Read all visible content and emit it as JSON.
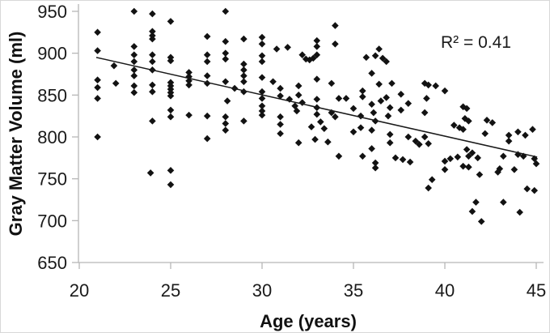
{
  "chart_data": {
    "type": "scatter",
    "title": "",
    "xlabel": "Age (years)",
    "ylabel": "Gray Matter Volume (ml)",
    "annotation": "R² = 0.41",
    "r_squared": 0.41,
    "xlim": [
      20,
      45
    ],
    "ylim": [
      650,
      950
    ],
    "x_ticks": [
      20,
      25,
      30,
      35,
      40,
      45
    ],
    "y_ticks": [
      650,
      700,
      750,
      800,
      850,
      900,
      950
    ],
    "grid": false,
    "legend_position": "none",
    "marker": "diamond",
    "marker_color": "#121212",
    "axis_color": "#b7b7b7",
    "label_color": "#1a1a1a",
    "trendline": {
      "x1": 20.93,
      "y1": 895,
      "x2": 45.05,
      "y2": 776,
      "color": "#1a1a1a"
    },
    "points": [
      [
        21,
        925
      ],
      [
        21,
        903
      ],
      [
        21,
        868
      ],
      [
        21,
        859
      ],
      [
        21,
        846
      ],
      [
        21,
        800
      ],
      [
        21.9,
        885
      ],
      [
        22,
        864
      ],
      [
        23,
        950
      ],
      [
        23,
        908
      ],
      [
        23,
        898
      ],
      [
        23,
        890
      ],
      [
        23,
        880
      ],
      [
        23,
        873
      ],
      [
        23,
        861
      ],
      [
        23,
        853
      ],
      [
        23.9,
        757
      ],
      [
        24,
        947
      ],
      [
        24,
        926
      ],
      [
        24,
        921
      ],
      [
        24,
        917
      ],
      [
        24,
        898
      ],
      [
        24,
        890
      ],
      [
        24,
        880
      ],
      [
        24,
        862
      ],
      [
        24,
        854
      ],
      [
        24,
        819
      ],
      [
        25,
        938
      ],
      [
        25,
        895
      ],
      [
        25,
        891
      ],
      [
        25,
        865
      ],
      [
        25,
        861
      ],
      [
        25,
        857
      ],
      [
        25,
        853
      ],
      [
        25,
        849
      ],
      [
        25,
        832
      ],
      [
        25,
        824
      ],
      [
        25,
        760
      ],
      [
        25,
        743
      ],
      [
        26,
        877
      ],
      [
        26,
        872
      ],
      [
        26,
        867
      ],
      [
        26,
        862
      ],
      [
        26,
        826
      ],
      [
        27,
        920
      ],
      [
        27,
        898
      ],
      [
        27,
        890
      ],
      [
        27,
        873
      ],
      [
        27,
        864
      ],
      [
        27,
        825
      ],
      [
        27,
        798
      ],
      [
        28,
        950
      ],
      [
        28,
        914
      ],
      [
        28,
        900
      ],
      [
        28,
        893
      ],
      [
        28,
        866
      ],
      [
        28.5,
        858
      ],
      [
        28.1,
        843
      ],
      [
        28,
        824
      ],
      [
        28,
        816
      ],
      [
        28,
        808
      ],
      [
        29,
        917
      ],
      [
        29,
        887
      ],
      [
        29,
        880
      ],
      [
        29,
        873
      ],
      [
        29,
        866
      ],
      [
        29,
        854
      ],
      [
        29,
        819
      ],
      [
        30,
        919
      ],
      [
        30,
        911
      ],
      [
        30,
        897
      ],
      [
        30,
        890
      ],
      [
        30,
        871
      ],
      [
        30,
        854
      ],
      [
        30,
        846
      ],
      [
        30,
        837
      ],
      [
        30,
        831
      ],
      [
        30,
        826
      ],
      [
        30.6,
        866
      ],
      [
        30.8,
        905
      ],
      [
        31.4,
        907
      ],
      [
        31,
        858
      ],
      [
        31,
        849
      ],
      [
        31.5,
        845
      ],
      [
        31.8,
        837
      ],
      [
        31.9,
        831
      ],
      [
        31,
        824
      ],
      [
        31,
        815
      ],
      [
        31,
        804
      ],
      [
        32.2,
        898
      ],
      [
        32.4,
        893
      ],
      [
        32.6,
        892
      ],
      [
        32.8,
        894
      ],
      [
        33,
        898
      ],
      [
        32,
        861
      ],
      [
        32,
        850
      ],
      [
        32.2,
        841
      ],
      [
        32.7,
        812
      ],
      [
        32,
        793
      ],
      [
        32.9,
        797
      ],
      [
        33,
        915
      ],
      [
        33,
        908
      ],
      [
        33,
        869
      ],
      [
        33.8,
        864
      ],
      [
        33,
        845
      ],
      [
        33,
        835
      ],
      [
        33.8,
        829
      ],
      [
        33,
        827
      ],
      [
        33.2,
        818
      ],
      [
        33.4,
        810
      ],
      [
        33.6,
        794
      ],
      [
        34,
        933
      ],
      [
        34,
        911
      ],
      [
        34.2,
        846
      ],
      [
        34.6,
        846
      ],
      [
        34,
        824
      ],
      [
        34.2,
        777
      ],
      [
        35.7,
        895
      ],
      [
        35.5,
        855
      ],
      [
        35.5,
        848
      ],
      [
        35,
        834
      ],
      [
        35.4,
        825
      ],
      [
        35.4,
        811
      ],
      [
        35,
        806
      ],
      [
        35.5,
        777
      ],
      [
        36.4,
        905
      ],
      [
        36.2,
        897
      ],
      [
        36.6,
        894
      ],
      [
        36.8,
        890
      ],
      [
        36,
        876
      ],
      [
        36.4,
        863
      ],
      [
        36.8,
        847
      ],
      [
        36.5,
        843
      ],
      [
        36,
        839
      ],
      [
        36.1,
        829
      ],
      [
        36.2,
        819
      ],
      [
        36,
        808
      ],
      [
        36,
        786
      ],
      [
        36.2,
        769
      ],
      [
        36.2,
        763
      ],
      [
        37.1,
        864
      ],
      [
        37.6,
        851
      ],
      [
        37,
        835
      ],
      [
        37.6,
        832
      ],
      [
        36.9,
        825
      ],
      [
        37,
        803
      ],
      [
        37,
        793
      ],
      [
        37.3,
        775
      ],
      [
        37.7,
        773
      ],
      [
        38,
        840
      ],
      [
        38,
        800
      ],
      [
        38.4,
        795
      ],
      [
        38.6,
        791
      ],
      [
        38.1,
        770
      ],
      [
        38.9,
        864
      ],
      [
        39.1,
        862
      ],
      [
        39.5,
        861
      ],
      [
        39,
        846
      ],
      [
        38.9,
        829
      ],
      [
        38.9,
        800
      ],
      [
        39.1,
        792
      ],
      [
        39.3,
        749
      ],
      [
        39.1,
        739
      ],
      [
        40,
        855
      ],
      [
        40.5,
        814
      ],
      [
        40.8,
        811
      ],
      [
        41,
        809
      ],
      [
        40.3,
        774
      ],
      [
        40.7,
        776
      ],
      [
        40,
        771
      ],
      [
        40,
        761
      ],
      [
        41,
        836
      ],
      [
        41.2,
        834
      ],
      [
        41.1,
        822
      ],
      [
        41.3,
        819
      ],
      [
        41.2,
        785
      ],
      [
        41.5,
        781
      ],
      [
        41.3,
        777
      ],
      [
        41.8,
        775
      ],
      [
        41,
        765
      ],
      [
        41.3,
        764
      ],
      [
        41.9,
        755
      ],
      [
        41.7,
        722
      ],
      [
        41.5,
        711
      ],
      [
        42.3,
        820
      ],
      [
        42.6,
        817
      ],
      [
        42.2,
        804
      ],
      [
        42,
        699
      ],
      [
        43.5,
        802
      ],
      [
        43.5,
        795
      ],
      [
        43.2,
        777
      ],
      [
        43,
        762
      ],
      [
        42.9,
        758
      ],
      [
        43.8,
        761
      ],
      [
        43.2,
        722
      ],
      [
        44.8,
        809
      ],
      [
        44,
        806
      ],
      [
        44.4,
        802
      ],
      [
        44,
        779
      ],
      [
        44.3,
        777
      ],
      [
        44.9,
        774
      ],
      [
        45,
        768
      ],
      [
        44.5,
        738
      ],
      [
        44.9,
        736
      ],
      [
        44.1,
        710
      ]
    ]
  }
}
